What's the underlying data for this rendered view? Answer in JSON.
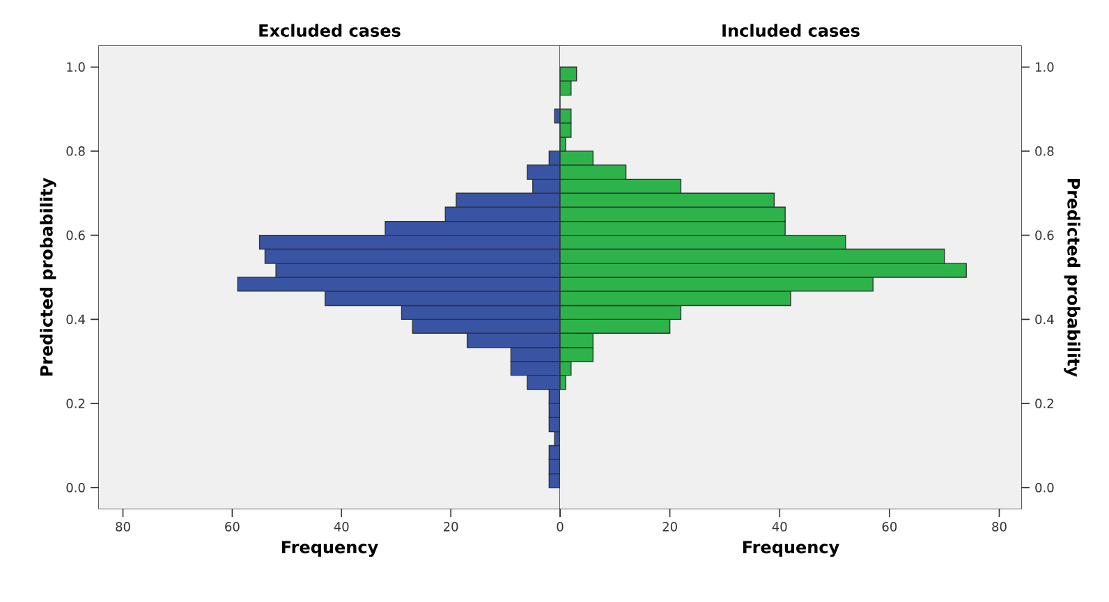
{
  "chart_data": [
    {
      "type": "histogram",
      "orientation": "horizontal",
      "title": "Excluded cases",
      "xlabel": "Frequency",
      "ylabel": "Predicted probability",
      "color": "#3a54a4",
      "bins": [
        0,
        0.033,
        0.067,
        0.1,
        0.133,
        0.167,
        0.2,
        0.233,
        0.267,
        0.3,
        0.333,
        0.367,
        0.4,
        0.433,
        0.467,
        0.5,
        0.533,
        0.567,
        0.6,
        0.633,
        0.667,
        0.7,
        0.733,
        0.767,
        0.8,
        0.867,
        0.9
      ],
      "values": [
        2,
        2,
        2,
        1,
        2,
        2,
        2,
        6,
        9,
        9,
        17,
        27,
        29,
        43,
        59,
        52,
        54,
        55,
        32,
        21,
        19,
        5,
        6,
        2,
        0,
        1
      ],
      "xlim": [
        84.4,
        0
      ],
      "ylim": [
        -0.05,
        1.05
      ],
      "xticks": [
        80,
        60,
        40,
        20,
        0
      ],
      "yticks": [
        {
          "value": 0,
          "label": "0.0"
        },
        {
          "value": 0.2,
          "label": "0.2"
        },
        {
          "value": 0.4,
          "label": "0.4"
        },
        {
          "value": 0.6,
          "label": "0.6"
        },
        {
          "value": 0.8,
          "label": "0.8"
        },
        {
          "value": 1,
          "label": "1.0"
        }
      ]
    },
    {
      "type": "histogram",
      "orientation": "horizontal",
      "title": "Included cases",
      "xlabel": "Frequency",
      "ylabel": "Predicted probability",
      "color": "#2db34a",
      "bins": [
        0.233,
        0.267,
        0.3,
        0.333,
        0.367,
        0.4,
        0.433,
        0.467,
        0.5,
        0.533,
        0.567,
        0.6,
        0.633,
        0.667,
        0.7,
        0.733,
        0.767,
        0.8,
        0.833,
        0.867,
        0.9,
        0.933,
        0.967,
        1.0
      ],
      "values": [
        1,
        2,
        6,
        6,
        20,
        22,
        42,
        57,
        74,
        70,
        52,
        41,
        41,
        39,
        22,
        12,
        6,
        1,
        2,
        2,
        0,
        2,
        3
      ],
      "xlim": [
        0,
        84
      ],
      "ylim": [
        -0.05,
        1.05
      ],
      "xticks": [
        {
          "value": 0,
          "label": null
        },
        20,
        40,
        60,
        80
      ],
      "yticks": [
        {
          "value": 0,
          "label": "0.0"
        },
        {
          "value": 0.2,
          "label": "0.2"
        },
        {
          "value": 0.4,
          "label": "0.4"
        },
        {
          "value": 0.6,
          "label": "0.6"
        },
        {
          "value": 0.8,
          "label": "0.8"
        },
        {
          "value": 1,
          "label": "1.0"
        }
      ]
    }
  ]
}
